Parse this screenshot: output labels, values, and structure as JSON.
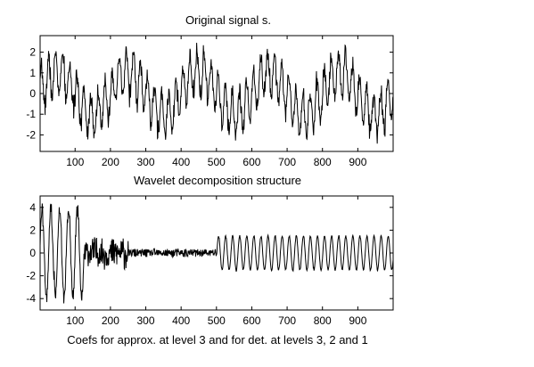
{
  "chart_data": [
    {
      "type": "line",
      "title": "Original signal s.",
      "xlabel": "",
      "ylabel": "",
      "xlim": [
        1,
        1000
      ],
      "ylim": [
        -2.8,
        2.8
      ],
      "xticks": [
        100,
        200,
        300,
        400,
        500,
        600,
        700,
        800,
        900
      ],
      "yticks": [
        -2,
        -1,
        0,
        1,
        2
      ],
      "grid": false,
      "series": [
        {
          "components": [
            {
              "kind": "sine",
              "amplitude": 1.0,
              "period": 200
            },
            {
              "kind": "sine",
              "amplitude": 1.0,
              "period": 20
            },
            {
              "kind": "noise",
              "std": 0.25
            }
          ]
        }
      ]
    },
    {
      "type": "line",
      "title": "Wavelet decomposition structure",
      "xlabel": "Coefs for approx. at level 3 and for det. at levels 3, 2 and 1",
      "ylabel": "",
      "xlim": [
        1,
        1000
      ],
      "ylim": [
        -5,
        5
      ],
      "xticks": [
        100,
        200,
        300,
        400,
        500,
        600,
        700,
        800,
        900
      ],
      "yticks": [
        -4,
        -2,
        0,
        2,
        4
      ],
      "grid": false,
      "segments": [
        {
          "name": "approx. level 3",
          "x": [
            1,
            125
          ],
          "amplitude": 4.5
        },
        {
          "name": "det. level 3",
          "x": [
            126,
            250
          ],
          "amplitude": 1.5
        },
        {
          "name": "det. level 2",
          "x": [
            251,
            500
          ],
          "amplitude": 0.4
        },
        {
          "name": "det. level 1",
          "x": [
            501,
            1000
          ],
          "amplitude": 1.5,
          "period": 20
        }
      ]
    }
  ]
}
